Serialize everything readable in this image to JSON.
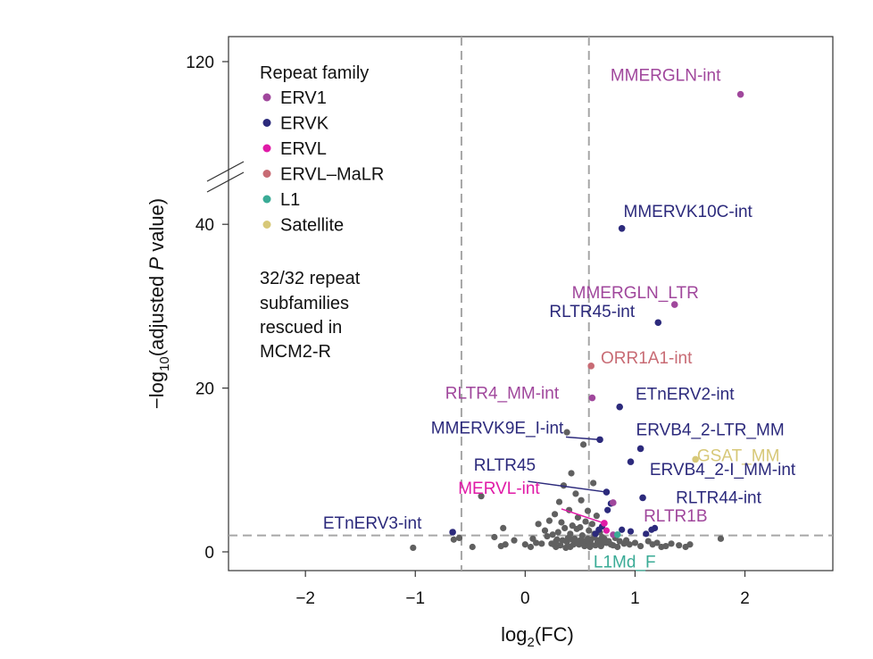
{
  "chart_data": {
    "type": "scatter",
    "subtype": "volcano",
    "xlabel_main": "log",
    "xlabel_sub": "2",
    "xlabel_rest": "(FC)",
    "ylabel_prefix": "−log",
    "ylabel_sub": "10",
    "ylabel_mid": "(adjusted ",
    "ylabel_ital": "P",
    "ylabel_end": " value)",
    "xlim": [
      -2.7,
      2.8
    ],
    "x_ticks": [
      {
        "value": -2,
        "label": "−2"
      },
      {
        "value": -1,
        "label": "−1"
      },
      {
        "value": 0,
        "label": "0"
      },
      {
        "value": 1,
        "label": "1"
      },
      {
        "value": 2,
        "label": "2"
      }
    ],
    "y_axis_break": {
      "lower_range": [
        -2,
        48
      ],
      "upper_range": [
        105,
        125
      ]
    },
    "y_ticks": [
      {
        "value": 0,
        "label": "0"
      },
      {
        "value": 20,
        "label": "20"
      },
      {
        "value": 40,
        "label": "40"
      },
      {
        "value": 120,
        "label": "120"
      }
    ],
    "thresholds": {
      "x": [
        -0.58,
        0.58
      ],
      "y": 2
    },
    "colors": {
      "ERV1": "#a0479c",
      "ERVK": "#2c2a7c",
      "ERVL": "#e01aa7",
      "ERVL-MaLR": "#c86b74",
      "L1": "#3aab96",
      "Satellite": "#d7c878",
      "background": "#606060",
      "threshold": "#a6a6a6",
      "axis": "#333333"
    },
    "legend": {
      "title": "Repeat family",
      "position": "top-left",
      "items": [
        {
          "label": "ERV1",
          "family": "ERV1"
        },
        {
          "label": "ERVK",
          "family": "ERVK"
        },
        {
          "label": "ERVL",
          "family": "ERVL"
        },
        {
          "label": "ERVL–MaLR",
          "family": "ERVL-MaLR"
        },
        {
          "label": "L1",
          "family": "L1"
        },
        {
          "label": "Satellite",
          "family": "Satellite"
        }
      ]
    },
    "annotation_lines": [
      "32/32 repeat",
      "subfamilies",
      "rescued in",
      "MCM2-R"
    ],
    "labeled_points": [
      {
        "name": "MMERGLN-int",
        "x": 1.96,
        "y": 116,
        "family": "ERV1"
      },
      {
        "name": "MMERVK10C-int",
        "x": 0.88,
        "y": 39.5,
        "family": "ERVK"
      },
      {
        "name": "MMERGLN_LTR",
        "x": 1.36,
        "y": 30.2,
        "family": "ERV1"
      },
      {
        "name": "RLTR45-int",
        "x": 1.21,
        "y": 28,
        "family": "ERVK"
      },
      {
        "name": "ORR1A1-int",
        "x": 0.6,
        "y": 22.7,
        "family": "ERVL-MaLR"
      },
      {
        "name": "RLTR4_MM-int",
        "x": 0.61,
        "y": 18.8,
        "family": "ERV1"
      },
      {
        "name": "ETnERV2-int",
        "x": 0.86,
        "y": 17.7,
        "family": "ERVK"
      },
      {
        "name": "MMERVK9E_I-int",
        "x": 0.68,
        "y": 13.7,
        "family": "ERVK"
      },
      {
        "name": "ERVB4_2-LTR_MM",
        "x": 1.05,
        "y": 12.6,
        "family": "ERVK"
      },
      {
        "name": "GSAT_MM",
        "x": 1.55,
        "y": 11.3,
        "family": "Satellite"
      },
      {
        "name": "RLTR45",
        "x": 0.74,
        "y": 7.3,
        "family": "ERVK"
      },
      {
        "name": "ERVB4_2-I_MM-int",
        "x": 0.96,
        "y": 11,
        "family": "ERVK"
      },
      {
        "name": "MERVL-int",
        "x": 0.72,
        "y": 3.5,
        "family": "ERVL"
      },
      {
        "name": "RLTR44-int",
        "x": 1.07,
        "y": 6.6,
        "family": "ERVK"
      },
      {
        "name": "RLTR1B",
        "x": 0.8,
        "y": 6,
        "family": "ERV1"
      },
      {
        "name": "ETnERV3-int",
        "x": -0.66,
        "y": 2.4,
        "family": "ERVK"
      },
      {
        "name": "L1Md_F",
        "x": 0.84,
        "y": 2.1,
        "family": "L1"
      }
    ],
    "extra_significant_points": [
      {
        "x": 0.75,
        "y": 5.1,
        "family": "ERVK"
      },
      {
        "x": 0.78,
        "y": 5.9,
        "family": "ERVK"
      },
      {
        "x": 0.7,
        "y": 3.1,
        "family": "ERVK"
      },
      {
        "x": 0.67,
        "y": 2.7,
        "family": "ERVK"
      },
      {
        "x": 0.64,
        "y": 2.2,
        "family": "ERVK"
      },
      {
        "x": 0.88,
        "y": 2.7,
        "family": "ERVK"
      },
      {
        "x": 1.1,
        "y": 2.2,
        "family": "ERVK"
      },
      {
        "x": 1.15,
        "y": 2.7,
        "family": "ERVK"
      },
      {
        "x": 0.96,
        "y": 2.5,
        "family": "ERVK"
      },
      {
        "x": 1.18,
        "y": 2.9,
        "family": "ERVK"
      },
      {
        "x": 0.8,
        "y": 2.1,
        "family": "ERV1"
      },
      {
        "x": 0.74,
        "y": 2.6,
        "family": "ERVL"
      }
    ],
    "background_points": [
      [
        -1.02,
        0.5
      ],
      [
        -0.6,
        1.7
      ],
      [
        -0.65,
        1.5
      ],
      [
        -0.48,
        0.6
      ],
      [
        -0.4,
        6.8
      ],
      [
        -0.28,
        1.8
      ],
      [
        -0.2,
        2.9
      ],
      [
        -0.1,
        1.4
      ],
      [
        -0.22,
        0.7
      ],
      [
        -0.18,
        0.9
      ],
      [
        0.07,
        1.6
      ],
      [
        0.12,
        3.4
      ],
      [
        0.0,
        0.9
      ],
      [
        0.05,
        0.6
      ],
      [
        0.1,
        1.1
      ],
      [
        0.15,
        1.0
      ],
      [
        0.18,
        2.6
      ],
      [
        0.2,
        1.9
      ],
      [
        0.22,
        3.8
      ],
      [
        0.25,
        2.1
      ],
      [
        0.27,
        4.6
      ],
      [
        0.28,
        1.3
      ],
      [
        0.3,
        2.4
      ],
      [
        0.31,
        6.1
      ],
      [
        0.33,
        3.6
      ],
      [
        0.35,
        8.1
      ],
      [
        0.36,
        2.9
      ],
      [
        0.38,
        14.6
      ],
      [
        0.38,
        1.2
      ],
      [
        0.4,
        5.1
      ],
      [
        0.41,
        2.2
      ],
      [
        0.42,
        9.6
      ],
      [
        0.43,
        3.2
      ],
      [
        0.45,
        1.6
      ],
      [
        0.46,
        7.1
      ],
      [
        0.47,
        2.8
      ],
      [
        0.48,
        4.2
      ],
      [
        0.5,
        1.4
      ],
      [
        0.5,
        3.0
      ],
      [
        0.51,
        6.3
      ],
      [
        0.52,
        2.0
      ],
      [
        0.53,
        13.1
      ],
      [
        0.55,
        3.7
      ],
      [
        0.56,
        1.1
      ],
      [
        0.57,
        5.0
      ],
      [
        0.58,
        2.6
      ],
      [
        0.6,
        1.5
      ],
      [
        0.61,
        3.4
      ],
      [
        0.62,
        8.4
      ],
      [
        0.63,
        1.8
      ],
      [
        0.65,
        4.4
      ],
      [
        0.66,
        1.3
      ],
      [
        0.68,
        2.4
      ],
      [
        0.7,
        1.0
      ],
      [
        0.72,
        1.6
      ],
      [
        0.24,
        1.0
      ],
      [
        0.32,
        0.8
      ],
      [
        0.44,
        0.9
      ],
      [
        0.54,
        0.7
      ],
      [
        0.64,
        0.8
      ],
      [
        0.74,
        1.1
      ],
      [
        0.8,
        0.8
      ],
      [
        0.86,
        1.3
      ],
      [
        0.9,
        1.0
      ],
      [
        0.95,
        0.9
      ],
      [
        1.0,
        1.1
      ],
      [
        1.05,
        0.7
      ],
      [
        1.12,
        1.3
      ],
      [
        1.2,
        1.1
      ],
      [
        1.28,
        0.7
      ],
      [
        1.33,
        1.0
      ],
      [
        1.4,
        0.8
      ],
      [
        1.46,
        0.6
      ],
      [
        1.78,
        1.6
      ],
      [
        1.5,
        0.9
      ],
      [
        0.28,
        0.6
      ],
      [
        0.37,
        0.5
      ],
      [
        0.41,
        0.6
      ],
      [
        0.49,
        0.9
      ],
      [
        0.59,
        0.6
      ],
      [
        0.69,
        0.7
      ],
      [
        0.78,
        0.9
      ],
      [
        0.84,
        0.6
      ],
      [
        0.92,
        1.4
      ],
      [
        1.16,
        0.9
      ],
      [
        1.24,
        0.6
      ],
      [
        0.34,
        1.4
      ],
      [
        0.46,
        1.2
      ],
      [
        0.57,
        1.6
      ],
      [
        0.63,
        2.2
      ],
      [
        0.67,
        1.4
      ],
      [
        0.39,
        1.7
      ],
      [
        0.29,
        1.5
      ],
      [
        0.26,
        0.9
      ],
      [
        0.43,
        1.5
      ],
      [
        0.53,
        1.3
      ],
      [
        0.6,
        0.9
      ],
      [
        0.7,
        1.8
      ],
      [
        0.76,
        1.3
      ],
      [
        0.82,
        1.7
      ]
    ]
  }
}
